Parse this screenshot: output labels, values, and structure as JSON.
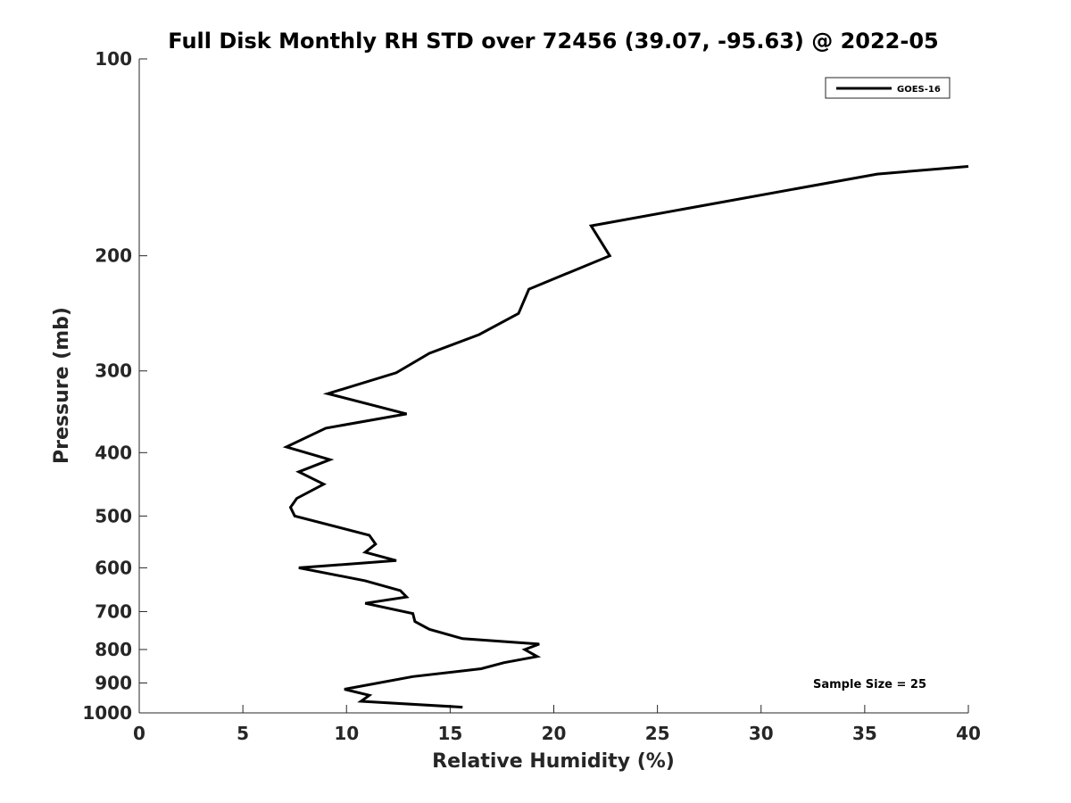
{
  "chart_data": {
    "type": "line",
    "title": "Full Disk Monthly RH STD over 72456 (39.07, -95.63) @ 2022-05",
    "xlabel": "Relative Humidity (%)",
    "ylabel": "Pressure (mb)",
    "xlim": [
      0,
      40
    ],
    "ylim": [
      100,
      1000
    ],
    "y_scale": "log",
    "y_reversed": true,
    "grid": false,
    "x_ticks": [
      "0",
      "5",
      "10",
      "15",
      "20",
      "25",
      "30",
      "35",
      "40"
    ],
    "y_ticks": [
      "100",
      "200",
      "300",
      "400",
      "500",
      "600",
      "700",
      "800",
      "900",
      "1000"
    ],
    "legend": {
      "placement": "top-right",
      "entries": [
        "GOES-16"
      ]
    },
    "annotation": "Sample Size = 25",
    "series": [
      {
        "name": "GOES-16",
        "color": "#000000",
        "x": [
          40.0,
          35.6,
          21.8,
          22.7,
          18.8,
          18.3,
          16.4,
          14.0,
          12.4,
          9.1,
          12.9,
          9.0,
          7.1,
          9.2,
          7.7,
          8.9,
          7.6,
          7.3,
          7.5,
          11.1,
          11.4,
          10.9,
          12.4,
          7.7,
          10.9,
          12.6,
          12.9,
          10.9,
          13.2,
          13.3,
          14.0,
          15.6,
          19.3,
          18.6,
          19.2,
          17.6,
          16.5,
          13.2,
          9.9,
          11.1,
          10.7,
          15.6
        ],
        "y": [
          146,
          150,
          180,
          200,
          225,
          245,
          264,
          282,
          302,
          325,
          349,
          367,
          392,
          410,
          428,
          447,
          470,
          485,
          500,
          535,
          552,
          568,
          585,
          600,
          628,
          650,
          665,
          680,
          705,
          725,
          745,
          770,
          785,
          800,
          820,
          838,
          856,
          880,
          920,
          940,
          960,
          980
        ]
      }
    ]
  }
}
